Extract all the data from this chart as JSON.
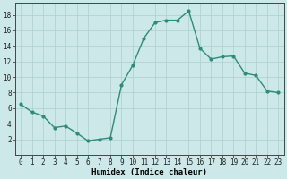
{
  "x": [
    0,
    1,
    2,
    3,
    4,
    5,
    6,
    7,
    8,
    9,
    10,
    11,
    12,
    13,
    14,
    15,
    16,
    17,
    18,
    19,
    20,
    21,
    22,
    23
  ],
  "y": [
    6.5,
    5.5,
    5.0,
    3.5,
    3.7,
    2.8,
    1.8,
    2.0,
    2.2,
    9.0,
    11.5,
    15.0,
    17.0,
    17.3,
    17.3,
    18.5,
    13.7,
    12.3,
    12.6,
    12.7,
    10.5,
    10.2,
    8.2,
    8.0
  ],
  "line_color": "#2e8b7a",
  "marker_color": "#2e8b7a",
  "bg_color": "#cce8e8",
  "grid_color": "#aacfcf",
  "xlabel": "Humidex (Indice chaleur)",
  "xlim": [
    -0.5,
    23.5
  ],
  "ylim": [
    0,
    19.5
  ],
  "yticks": [
    2,
    4,
    6,
    8,
    10,
    12,
    14,
    16,
    18
  ],
  "xticks": [
    0,
    1,
    2,
    3,
    4,
    5,
    6,
    7,
    8,
    9,
    10,
    11,
    12,
    13,
    14,
    15,
    16,
    17,
    18,
    19,
    20,
    21,
    22,
    23
  ],
  "xlabel_fontsize": 6.5,
  "tick_fontsize": 5.5,
  "line_width": 1.0,
  "marker_size": 2.0
}
